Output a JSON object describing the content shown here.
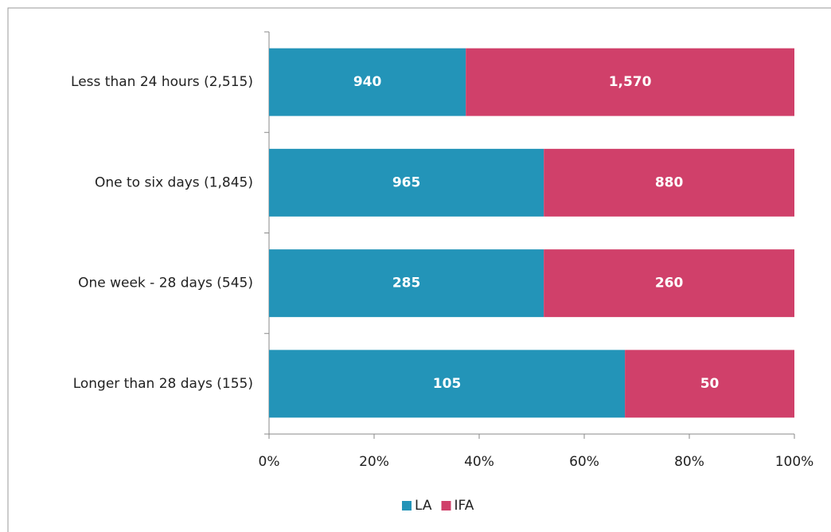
{
  "chart_data": {
    "type": "bar",
    "orientation": "horizontal",
    "stacking": "percent",
    "categories": [
      "Less than 24 hours (2,515)",
      "One to six days (1,845)",
      "One week - 28 days (545)",
      "Longer than 28 days (155)"
    ],
    "series": [
      {
        "name": "LA",
        "color": "#2394b8",
        "values": [
          940,
          965,
          285,
          105
        ]
      },
      {
        "name": "IFA",
        "color": "#d0406a",
        "values": [
          1570,
          880,
          260,
          50
        ]
      }
    ],
    "value_labels": [
      [
        "940",
        "965",
        "285",
        "105"
      ],
      [
        "1,570",
        "880",
        "260",
        "50"
      ]
    ],
    "xlim": [
      0,
      100
    ],
    "xticks": [
      {
        "value": 0,
        "label": "0%"
      },
      {
        "value": 20,
        "label": "20%"
      },
      {
        "value": 40,
        "label": "40%"
      },
      {
        "value": 60,
        "label": "60%"
      },
      {
        "value": 80,
        "label": "80%"
      },
      {
        "value": 100,
        "label": "100%"
      }
    ],
    "legend": "bottom"
  }
}
